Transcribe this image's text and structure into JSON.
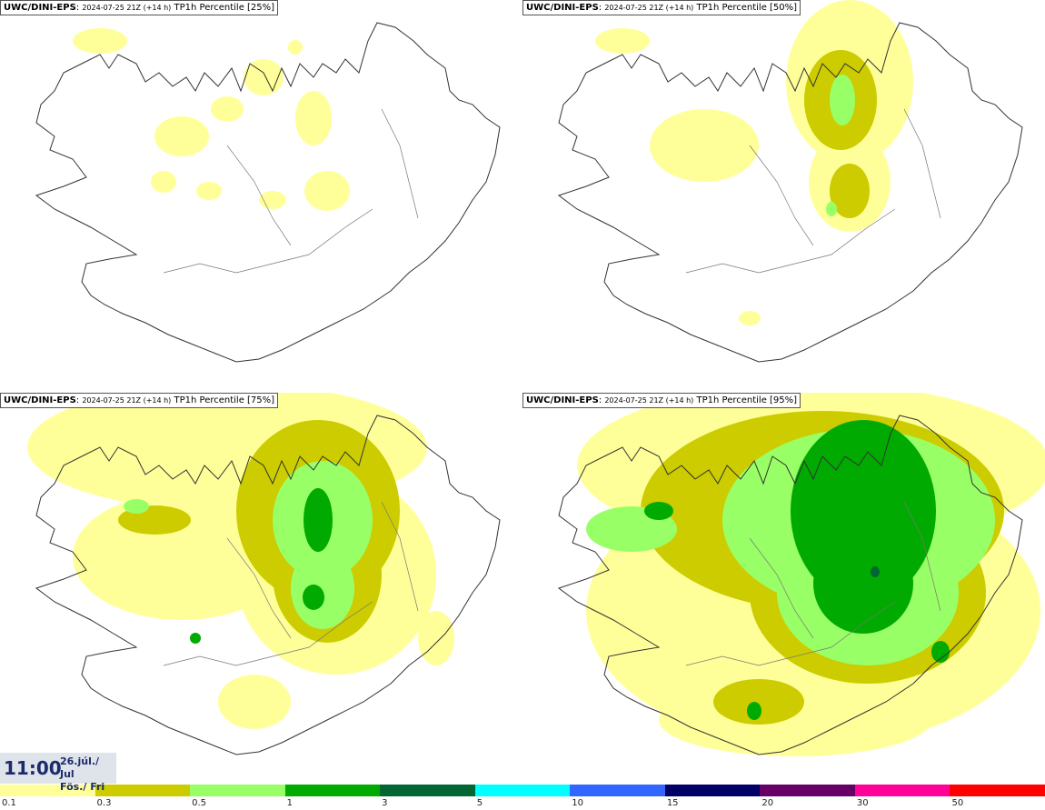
{
  "panels": [
    {
      "source": "UWC/DINI-EPS",
      "run": "2024-07-25 21Z (+14 h)",
      "label": "TP1h Percentile [25%]"
    },
    {
      "source": "UWC/DINI-EPS",
      "run": "2024-07-25 21Z (+14 h)",
      "label": "TP1h Percentile [50%]"
    },
    {
      "source": "UWC/DINI-EPS",
      "run": "2024-07-25 21Z (+14 h)",
      "label": "TP1h Percentile [75%]"
    },
    {
      "source": "UWC/DINI-EPS",
      "run": "2024-07-25 21Z (+14 h)",
      "label": "TP1h Percentile [95%]"
    }
  ],
  "valid_time": {
    "time": "11:00",
    "date_line1": "26.júl./ Jul",
    "date_line2": "Fös./ Fri"
  },
  "legend": {
    "ticks": [
      "0.1",
      "0.3",
      "0.5",
      "1",
      "3",
      "5",
      "10",
      "15",
      "20",
      "30",
      "50"
    ],
    "colors": [
      "#ffff99",
      "#cccc00",
      "#99ff66",
      "#00aa00",
      "#006633",
      "#00ffff",
      "#3366ff",
      "#000066",
      "#660066",
      "#ff0099",
      "#ff0000"
    ]
  },
  "colors": {
    "coast": "#333333",
    "light_yellow": "#ffff99",
    "olive": "#cccc00",
    "light_green": "#99ff66",
    "green": "#00aa00",
    "dark_green": "#006633",
    "time_text": "#1b2b6b"
  }
}
